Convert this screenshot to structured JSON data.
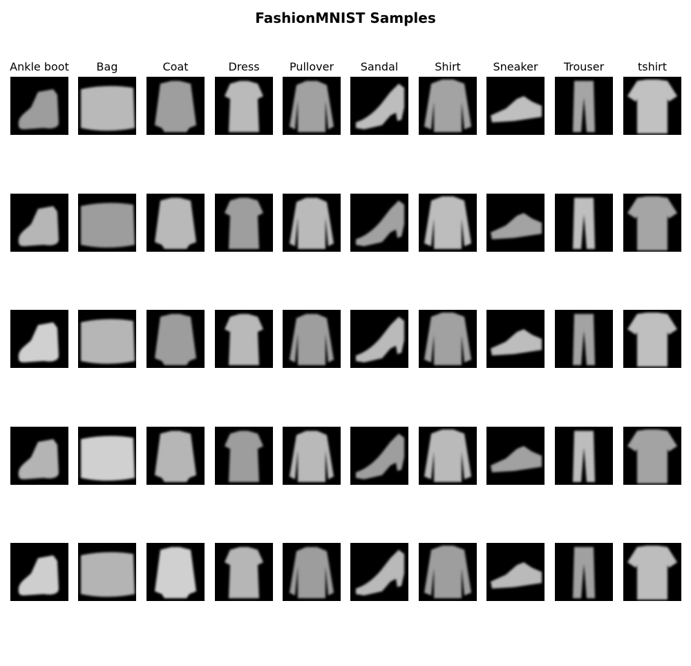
{
  "title": "FashionMNIST Samples",
  "columns": [
    {
      "label": "Ankle boot",
      "icon": "ankle-boot"
    },
    {
      "label": "Bag",
      "icon": "bag"
    },
    {
      "label": "Coat",
      "icon": "coat"
    },
    {
      "label": "Dress",
      "icon": "dress"
    },
    {
      "label": "Pullover",
      "icon": "pullover"
    },
    {
      "label": "Sandal",
      "icon": "sandal"
    },
    {
      "label": "Shirt",
      "icon": "shirt"
    },
    {
      "label": "Sneaker",
      "icon": "sneaker"
    },
    {
      "label": "Trouser",
      "icon": "trouser"
    },
    {
      "label": "tshirt",
      "icon": "tshirt"
    }
  ],
  "samples_per_class": 5,
  "colors": {
    "background": "#ffffff",
    "tile": "#000000",
    "item": "#d9d9d9"
  }
}
